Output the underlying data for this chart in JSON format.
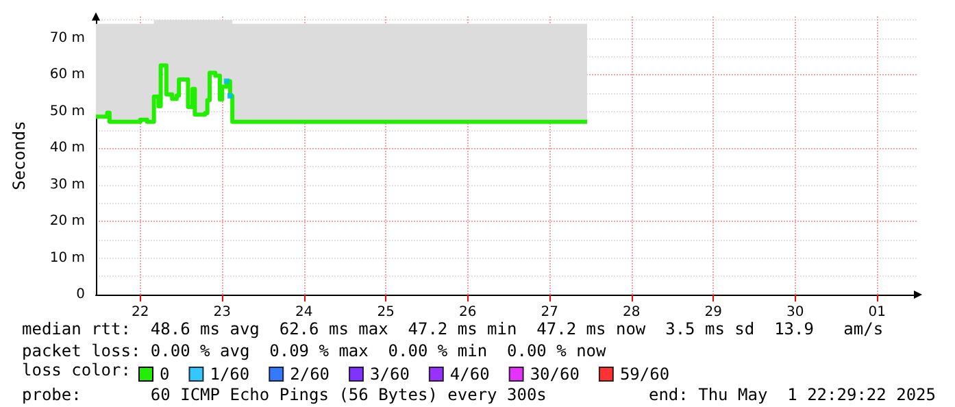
{
  "chart_data": {
    "type": "step",
    "ylabel": "Seconds",
    "legend_title": "loss color:",
    "legend": "bottom",
    "grid": true,
    "line_style": "solid",
    "xlim": [
      "2025-04-21T11:00",
      "2025-05-01T12:00"
    ],
    "xticks": [
      {
        "value": "2025-04-22",
        "label": "22"
      },
      {
        "value": "2025-04-23",
        "label": "23"
      },
      {
        "value": "2025-04-24",
        "label": "24"
      },
      {
        "value": "2025-04-25",
        "label": "25"
      },
      {
        "value": "2025-04-26",
        "label": "26"
      },
      {
        "value": "2025-04-27",
        "label": "27"
      },
      {
        "value": "2025-04-28",
        "label": "28"
      },
      {
        "value": "2025-04-29",
        "label": "29"
      },
      {
        "value": "2025-04-30",
        "label": "30"
      },
      {
        "value": "2025-05-01",
        "label": "01"
      }
    ],
    "ylim": [
      0,
      76
    ],
    "yticks": [
      {
        "value": 0,
        "label": "0"
      },
      {
        "value": 10,
        "label": "10 m"
      },
      {
        "value": 20,
        "label": "20 m"
      },
      {
        "value": 30,
        "label": "30 m"
      },
      {
        "value": 40,
        "label": "40 m"
      },
      {
        "value": 50,
        "label": "50 m"
      },
      {
        "value": 60,
        "label": "60 m"
      },
      {
        "value": 70,
        "label": "70 m"
      }
    ],
    "x": [
      "2025-04-21T11:00",
      "2025-04-21T14:20",
      "2025-04-21T15:00",
      "2025-04-22T00:00",
      "2025-04-22T02:00",
      "2025-04-22T04:00",
      "2025-04-22T05:20",
      "2025-04-22T06:00",
      "2025-04-22T07:40",
      "2025-04-22T09:20",
      "2025-04-22T10:40",
      "2025-04-22T11:20",
      "2025-04-22T13:20",
      "2025-04-22T14:00",
      "2025-04-22T15:20",
      "2025-04-22T16:00",
      "2025-04-22T19:00",
      "2025-04-22T19:40",
      "2025-04-22T20:20",
      "2025-04-22T22:00",
      "2025-04-22T23:20",
      "2025-04-23T00:00",
      "2025-04-23T01:20",
      "2025-04-23T02:20",
      "2025-04-23T03:00",
      "2025-04-27T11:00"
    ],
    "series": [
      {
        "name": "0",
        "color": "#22ee00",
        "values": [
          48.6,
          49.7,
          47.2,
          47.8,
          47.2,
          54.1,
          51.5,
          62.6,
          54.7,
          53.5,
          54.4,
          58.8,
          58.8,
          51.3,
          56.2,
          49.2,
          49.6,
          53.1,
          60.6,
          59.8,
          53.3,
          56.8,
          58.3,
          54.3,
          47.2,
          47.2
        ],
        "lower": [
          48.6,
          49.7,
          47.2,
          47.8,
          47.2,
          54.1,
          51.5,
          62.6,
          54.7,
          53.5,
          54.4,
          58.8,
          58.8,
          51.3,
          56.2,
          49.2,
          49.6,
          53.1,
          60.6,
          59.8,
          53.3,
          56.8,
          58.3,
          54.3,
          47.2,
          47.2
        ],
        "upper": [
          74,
          74,
          74,
          74,
          74,
          75,
          75,
          75,
          75,
          75,
          75,
          75,
          75,
          75,
          75,
          75,
          75,
          75,
          75,
          75,
          75,
          75,
          75,
          75,
          74,
          74
        ]
      },
      {
        "name": "1/60",
        "color": "#00b8ff",
        "type": "scatter",
        "marker": "square",
        "values": [
          null,
          null,
          null,
          null,
          null,
          null,
          null,
          null,
          null,
          null,
          null,
          null,
          null,
          null,
          null,
          null,
          null,
          null,
          null,
          null,
          null,
          null,
          58.3,
          54.3,
          null,
          null
        ]
      },
      {
        "name": "2/60",
        "color": "#0059ff",
        "type": "scatter",
        "values": [
          null,
          null,
          null,
          null,
          null,
          null,
          null,
          null,
          null,
          null,
          null,
          null,
          null,
          null,
          null,
          null,
          null,
          null,
          null,
          null,
          null,
          null,
          null,
          null,
          null,
          null
        ]
      },
      {
        "name": "3/60",
        "color": "#5e00ff",
        "type": "scatter",
        "values": [
          null,
          null,
          null,
          null,
          null,
          null,
          null,
          null,
          null,
          null,
          null,
          null,
          null,
          null,
          null,
          null,
          null,
          null,
          null,
          null,
          null,
          null,
          null,
          null,
          null,
          null
        ]
      },
      {
        "name": "4/60",
        "color": "#7e00ff",
        "type": "scatter",
        "values": [
          null,
          null,
          null,
          null,
          null,
          null,
          null,
          null,
          null,
          null,
          null,
          null,
          null,
          null,
          null,
          null,
          null,
          null,
          null,
          null,
          null,
          null,
          null,
          null,
          null,
          null
        ]
      },
      {
        "name": "30/60",
        "color": "#dd00ff",
        "type": "scatter",
        "values": [
          null,
          null,
          null,
          null,
          null,
          null,
          null,
          null,
          null,
          null,
          null,
          null,
          null,
          null,
          null,
          null,
          null,
          null,
          null,
          null,
          null,
          null,
          null,
          null,
          null,
          null
        ]
      },
      {
        "name": "59/60",
        "color": "#ff0000",
        "type": "scatter",
        "values": [
          null,
          null,
          null,
          null,
          null,
          null,
          null,
          null,
          null,
          null,
          null,
          null,
          null,
          null,
          null,
          null,
          null,
          null,
          null,
          null,
          null,
          null,
          null,
          null,
          null,
          null
        ]
      }
    ],
    "annotations": [
      "median rtt:  48.6 ms avg  62.6 ms max  47.2 ms min  47.2 ms now  3.5 ms sd  13.9   am/s",
      "packet loss: 0.00 % avg  0.09 % max  0.00 % min  0.00 % now",
      "probe:       60 ICMP Echo Pings (56 Bytes) every 300s",
      "end: Thu May  1 22:29:22 2025"
    ]
  }
}
